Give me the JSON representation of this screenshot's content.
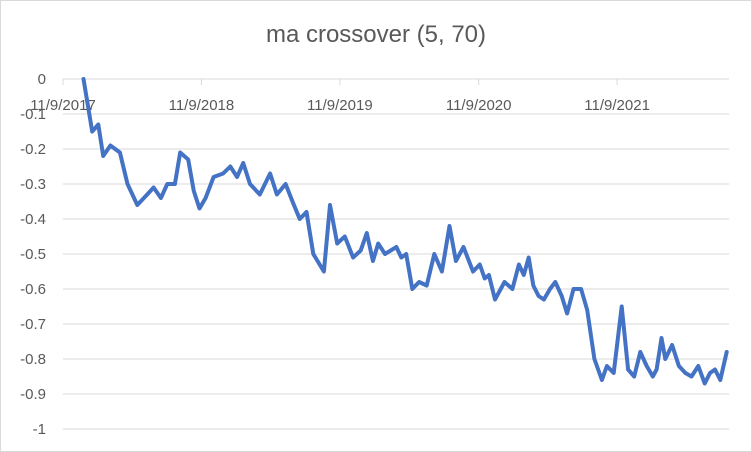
{
  "chart_data": {
    "type": "line",
    "title": "ma crossover (5, 70)",
    "xlabel": "",
    "ylabel": "",
    "ylim": [
      -1,
      0
    ],
    "y_ticks": [
      "0",
      "-0.1",
      "-0.2",
      "-0.3",
      "-0.4",
      "-0.5",
      "-0.6",
      "-0.7",
      "-0.8",
      "-0.9",
      "-1"
    ],
    "x_ticks": [
      "11/9/2017",
      "11/9/2018",
      "11/9/2019",
      "11/9/2020",
      "11/9/2021"
    ],
    "x_range": [
      "2017-11-09",
      "2022-08-31"
    ],
    "grid": "horizontal",
    "legend": "none",
    "series_color": "#4472c4",
    "x": [
      "2018-01-02",
      "2018-01-25",
      "2018-02-10",
      "2018-02-23",
      "2018-03-14",
      "2018-04-08",
      "2018-04-28",
      "2018-05-24",
      "2018-06-19",
      "2018-07-06",
      "2018-07-25",
      "2018-08-11",
      "2018-08-31",
      "2018-09-14",
      "2018-10-05",
      "2018-10-20",
      "2018-11-04",
      "2018-11-20",
      "2018-12-11",
      "2019-01-05",
      "2019-01-24",
      "2019-02-11",
      "2019-02-27",
      "2019-03-17",
      "2019-04-12",
      "2019-05-09",
      "2019-05-27",
      "2019-06-19",
      "2019-07-07",
      "2019-07-26",
      "2019-08-13",
      "2019-08-31",
      "2019-09-28",
      "2019-10-14",
      "2019-11-02",
      "2019-11-22",
      "2019-12-14",
      "2020-01-03",
      "2020-01-19",
      "2020-02-04",
      "2020-02-18",
      "2020-03-07",
      "2020-03-22",
      "2020-04-06",
      "2020-04-19",
      "2020-05-02",
      "2020-05-18",
      "2020-06-05",
      "2020-06-25",
      "2020-07-15",
      "2020-08-04",
      "2020-08-24",
      "2020-09-10",
      "2020-09-30",
      "2020-10-25",
      "2020-11-12",
      "2020-11-25",
      "2020-12-06",
      "2020-12-22",
      "2021-01-16",
      "2021-02-06",
      "2021-02-23",
      "2021-03-08",
      "2021-03-21",
      "2021-04-02",
      "2021-04-16",
      "2021-04-30",
      "2021-05-16",
      "2021-05-30",
      "2021-06-16",
      "2021-06-30",
      "2021-07-17",
      "2021-08-06",
      "2021-08-22",
      "2021-09-10",
      "2021-09-30",
      "2021-10-13",
      "2021-10-31",
      "2021-11-21",
      "2021-12-08",
      "2021-12-24",
      "2022-01-09",
      "2022-01-26",
      "2022-02-11",
      "2022-02-21",
      "2022-03-06",
      "2022-03-16",
      "2022-04-03",
      "2022-04-21",
      "2022-05-08",
      "2022-05-24",
      "2022-06-11",
      "2022-06-28",
      "2022-07-12",
      "2022-07-25",
      "2022-08-08",
      "2022-08-25"
    ],
    "values": [
      0.0,
      -0.15,
      -0.13,
      -0.22,
      -0.19,
      -0.21,
      -0.3,
      -0.36,
      -0.33,
      -0.31,
      -0.34,
      -0.3,
      -0.3,
      -0.21,
      -0.23,
      -0.32,
      -0.37,
      -0.34,
      -0.28,
      -0.27,
      -0.25,
      -0.28,
      -0.24,
      -0.3,
      -0.33,
      -0.27,
      -0.33,
      -0.3,
      -0.35,
      -0.4,
      -0.38,
      -0.5,
      -0.55,
      -0.36,
      -0.47,
      -0.45,
      -0.51,
      -0.49,
      -0.44,
      -0.52,
      -0.47,
      -0.5,
      -0.49,
      -0.48,
      -0.51,
      -0.5,
      -0.6,
      -0.58,
      -0.59,
      -0.5,
      -0.55,
      -0.42,
      -0.52,
      -0.48,
      -0.55,
      -0.53,
      -0.57,
      -0.56,
      -0.63,
      -0.58,
      -0.6,
      -0.53,
      -0.56,
      -0.51,
      -0.59,
      -0.62,
      -0.63,
      -0.6,
      -0.58,
      -0.62,
      -0.67,
      -0.6,
      -0.6,
      -0.66,
      -0.8,
      -0.86,
      -0.82,
      -0.84,
      -0.65,
      -0.83,
      -0.85,
      -0.78,
      -0.82,
      -0.85,
      -0.83,
      -0.74,
      -0.8,
      -0.76,
      -0.82,
      -0.84,
      -0.85,
      -0.82,
      -0.87,
      -0.84,
      -0.83,
      -0.86,
      -0.78
    ]
  }
}
